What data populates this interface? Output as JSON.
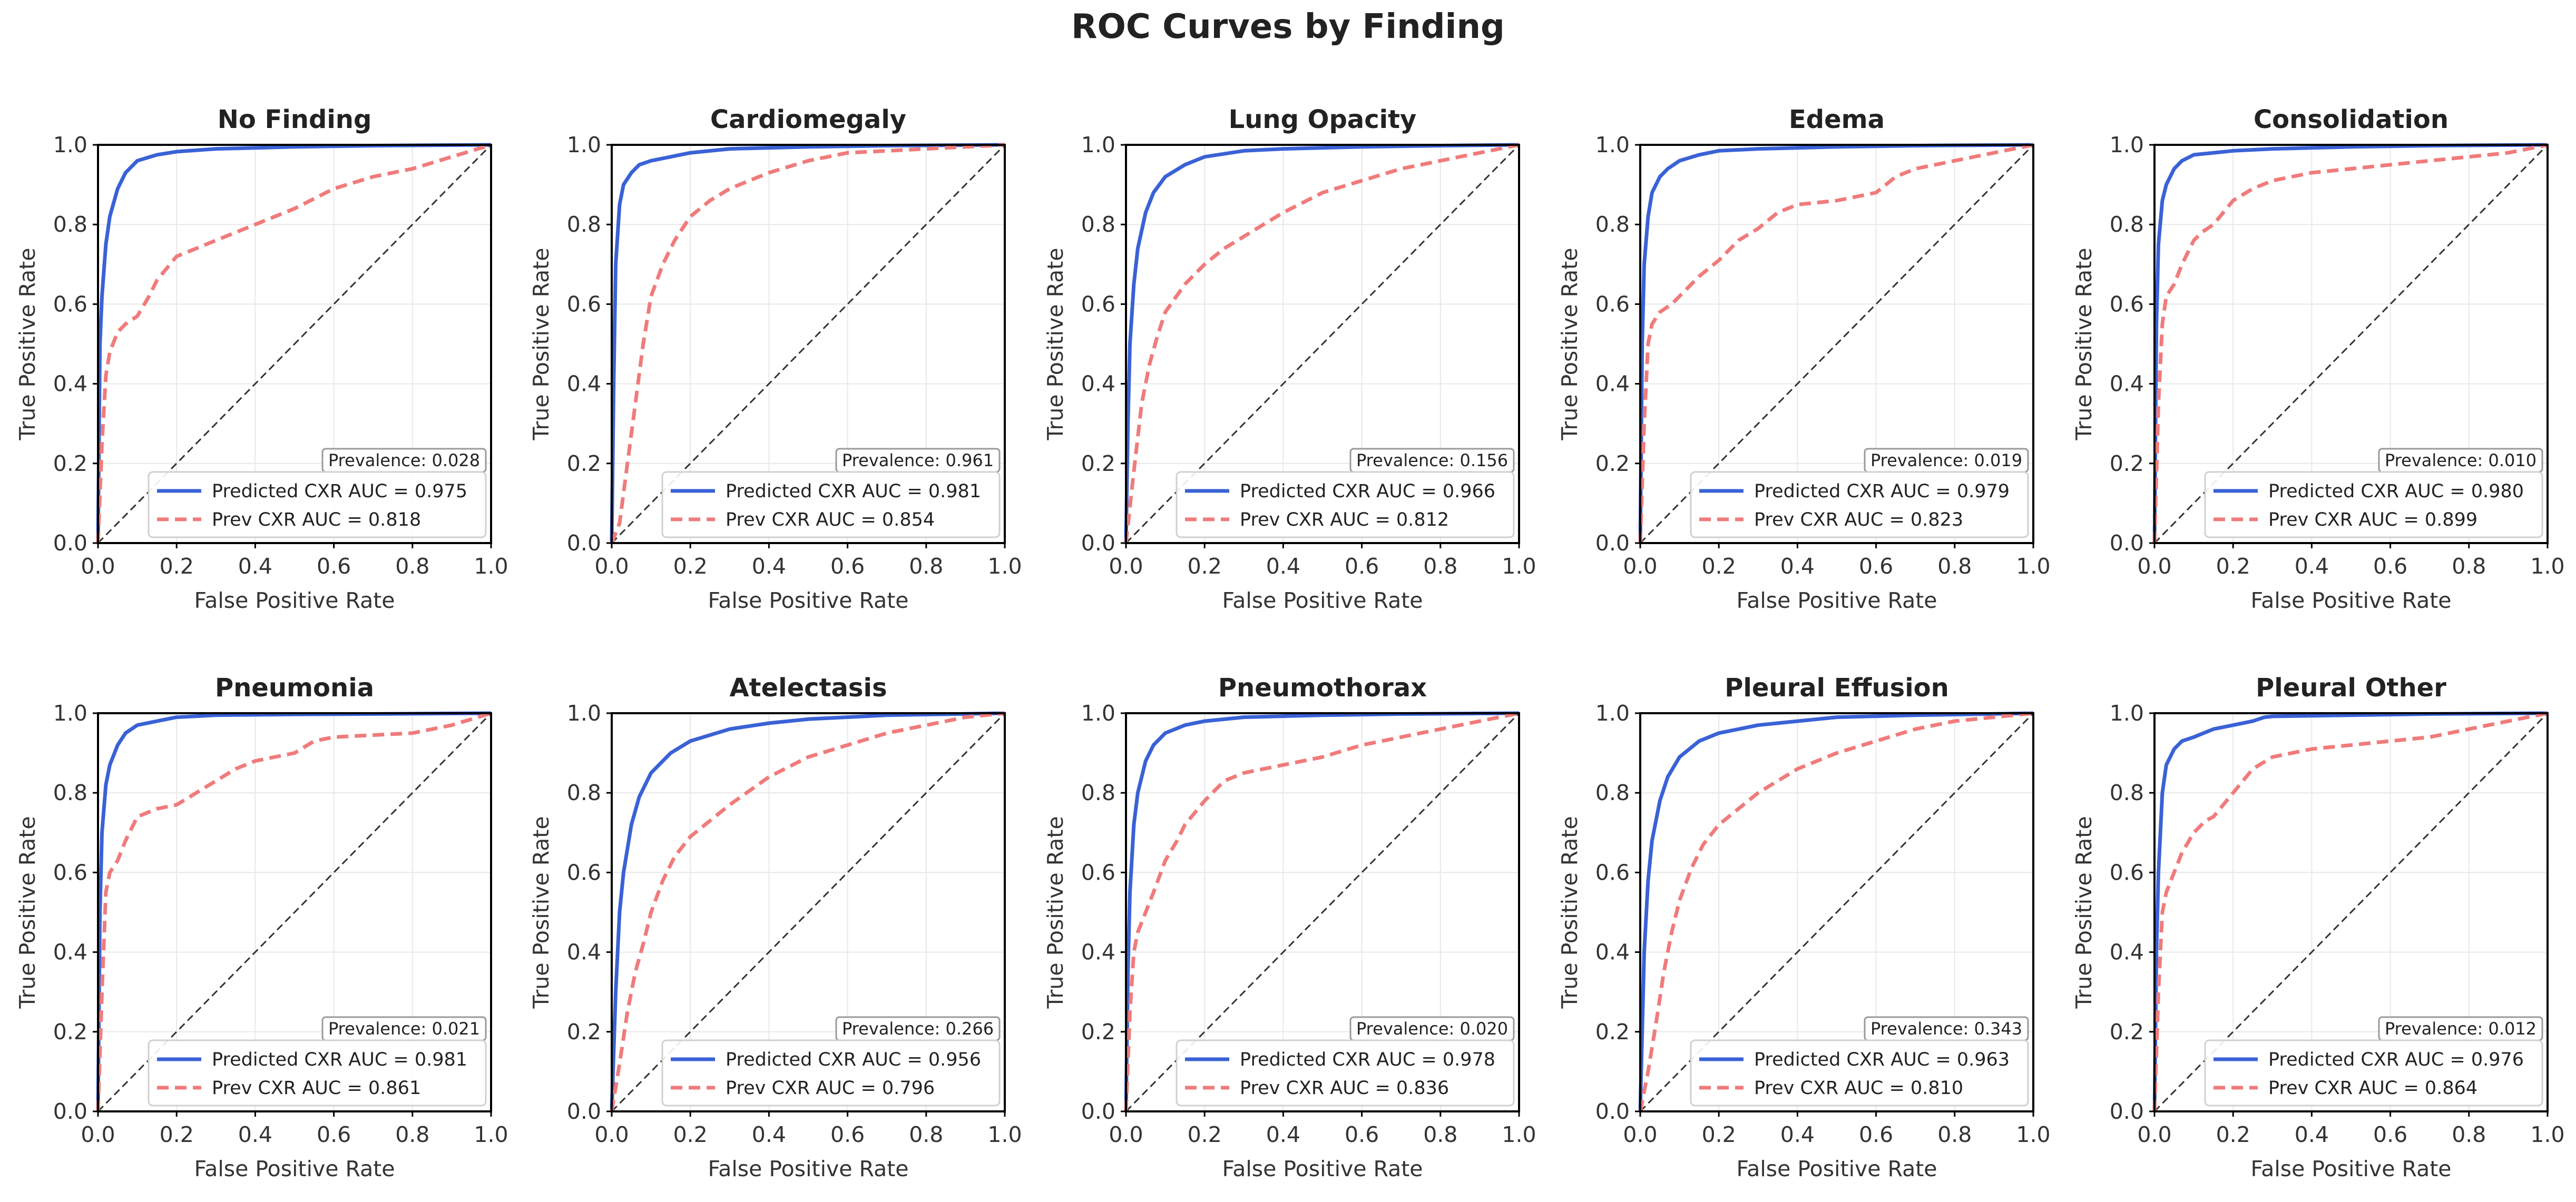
{
  "title": "ROC Curves by Finding",
  "colors": {
    "predicted": "#3a62d6",
    "previous": "#f07b7b",
    "diagonal": "#333333",
    "grid": "#e8e8e8"
  },
  "chart_data": {
    "type": "line",
    "xlabel": "False Positive Rate",
    "ylabel": "True Positive Rate",
    "xlim": [
      0.0,
      1.0
    ],
    "ylim": [
      0.0,
      1.0
    ],
    "ticks": [
      "0.0",
      "0.2",
      "0.4",
      "0.6",
      "0.8",
      "1.0"
    ],
    "grid": true,
    "legend_position": "lower-right",
    "panels": [
      {
        "title": "No Finding",
        "prevalence": "Prevalence: 0.028",
        "series": [
          {
            "name": "Predicted CXR AUC = 0.975",
            "x": [
              0,
              0.005,
              0.01,
              0.02,
              0.03,
              0.05,
              0.07,
              0.1,
              0.15,
              0.2,
              0.3,
              0.5,
              0.7,
              1.0
            ],
            "y": [
              0,
              0.5,
              0.62,
              0.75,
              0.82,
              0.89,
              0.93,
              0.96,
              0.975,
              0.983,
              0.99,
              0.995,
              0.998,
              1.0
            ]
          },
          {
            "name": "Prev CXR AUC = 0.818",
            "x": [
              0,
              0.01,
              0.02,
              0.03,
              0.05,
              0.07,
              0.1,
              0.13,
              0.15,
              0.2,
              0.25,
              0.3,
              0.35,
              0.4,
              0.5,
              0.6,
              0.7,
              0.8,
              0.9,
              1.0
            ],
            "y": [
              0,
              0.25,
              0.42,
              0.48,
              0.53,
              0.55,
              0.57,
              0.62,
              0.66,
              0.72,
              0.74,
              0.76,
              0.78,
              0.8,
              0.84,
              0.89,
              0.92,
              0.94,
              0.97,
              1.0
            ]
          }
        ]
      },
      {
        "title": "Cardiomegaly",
        "prevalence": "Prevalence: 0.961",
        "series": [
          {
            "name": "Predicted CXR AUC = 0.981",
            "x": [
              0,
              0.005,
              0.01,
              0.02,
              0.03,
              0.05,
              0.07,
              0.1,
              0.15,
              0.2,
              0.3,
              0.5,
              0.7,
              1.0
            ],
            "y": [
              0,
              0.4,
              0.7,
              0.85,
              0.9,
              0.93,
              0.95,
              0.96,
              0.97,
              0.98,
              0.99,
              0.995,
              0.998,
              1.0
            ]
          },
          {
            "name": "Prev CXR AUC = 0.854",
            "x": [
              0,
              0.02,
              0.04,
              0.06,
              0.08,
              0.1,
              0.13,
              0.16,
              0.2,
              0.25,
              0.3,
              0.4,
              0.5,
              0.6,
              0.8,
              1.0
            ],
            "y": [
              0,
              0.05,
              0.2,
              0.35,
              0.5,
              0.62,
              0.7,
              0.76,
              0.82,
              0.86,
              0.89,
              0.93,
              0.96,
              0.98,
              0.99,
              1.0
            ]
          }
        ]
      },
      {
        "title": "Lung Opacity",
        "prevalence": "Prevalence: 0.156",
        "series": [
          {
            "name": "Predicted CXR AUC = 0.966",
            "x": [
              0,
              0.005,
              0.01,
              0.02,
              0.03,
              0.05,
              0.07,
              0.1,
              0.15,
              0.2,
              0.3,
              0.4,
              0.6,
              0.8,
              1.0
            ],
            "y": [
              0,
              0.3,
              0.5,
              0.65,
              0.74,
              0.83,
              0.88,
              0.92,
              0.95,
              0.97,
              0.985,
              0.99,
              0.995,
              0.998,
              1.0
            ]
          },
          {
            "name": "Prev CXR AUC = 0.812",
            "x": [
              0,
              0.02,
              0.04,
              0.06,
              0.08,
              0.1,
              0.15,
              0.2,
              0.25,
              0.3,
              0.4,
              0.5,
              0.6,
              0.7,
              0.8,
              0.9,
              1.0
            ],
            "y": [
              0,
              0.18,
              0.35,
              0.45,
              0.52,
              0.58,
              0.65,
              0.7,
              0.74,
              0.77,
              0.83,
              0.88,
              0.91,
              0.94,
              0.96,
              0.98,
              1.0
            ]
          }
        ]
      },
      {
        "title": "Edema",
        "prevalence": "Prevalence: 0.019",
        "series": [
          {
            "name": "Predicted CXR AUC = 0.979",
            "x": [
              0,
              0.005,
              0.01,
              0.02,
              0.03,
              0.05,
              0.07,
              0.1,
              0.15,
              0.2,
              0.3,
              0.5,
              0.7,
              1.0
            ],
            "y": [
              0,
              0.5,
              0.7,
              0.82,
              0.88,
              0.92,
              0.94,
              0.96,
              0.975,
              0.985,
              0.99,
              0.995,
              0.998,
              1.0
            ]
          },
          {
            "name": "Prev CXR AUC = 0.823",
            "x": [
              0,
              0.01,
              0.02,
              0.03,
              0.05,
              0.08,
              0.1,
              0.15,
              0.2,
              0.25,
              0.3,
              0.35,
              0.4,
              0.5,
              0.55,
              0.6,
              0.65,
              0.7,
              0.8,
              0.9,
              1.0
            ],
            "y": [
              0,
              0.3,
              0.5,
              0.55,
              0.58,
              0.6,
              0.62,
              0.67,
              0.71,
              0.76,
              0.79,
              0.83,
              0.85,
              0.86,
              0.87,
              0.88,
              0.92,
              0.94,
              0.96,
              0.98,
              1.0
            ]
          }
        ]
      },
      {
        "title": "Consolidation",
        "prevalence": "Prevalence: 0.010",
        "series": [
          {
            "name": "Predicted CXR AUC = 0.980",
            "x": [
              0,
              0.005,
              0.01,
              0.02,
              0.03,
              0.05,
              0.07,
              0.1,
              0.15,
              0.2,
              0.3,
              0.5,
              0.7,
              1.0
            ],
            "y": [
              0,
              0.55,
              0.75,
              0.86,
              0.9,
              0.94,
              0.96,
              0.975,
              0.98,
              0.985,
              0.99,
              0.995,
              0.998,
              1.0
            ]
          },
          {
            "name": "Prev CXR AUC = 0.899",
            "x": [
              0,
              0.01,
              0.02,
              0.03,
              0.05,
              0.07,
              0.1,
              0.12,
              0.15,
              0.2,
              0.25,
              0.3,
              0.4,
              0.5,
              0.6,
              0.7,
              0.8,
              0.9,
              1.0
            ],
            "y": [
              0,
              0.35,
              0.55,
              0.62,
              0.65,
              0.7,
              0.76,
              0.78,
              0.8,
              0.86,
              0.89,
              0.91,
              0.93,
              0.94,
              0.95,
              0.96,
              0.97,
              0.98,
              1.0
            ]
          }
        ]
      },
      {
        "title": "Pneumonia",
        "prevalence": "Prevalence: 0.021",
        "series": [
          {
            "name": "Predicted CXR AUC = 0.981",
            "x": [
              0,
              0.005,
              0.01,
              0.02,
              0.03,
              0.05,
              0.07,
              0.1,
              0.15,
              0.2,
              0.3,
              0.5,
              0.7,
              1.0
            ],
            "y": [
              0,
              0.5,
              0.7,
              0.82,
              0.87,
              0.92,
              0.95,
              0.97,
              0.98,
              0.99,
              0.995,
              0.997,
              0.998,
              1.0
            ]
          },
          {
            "name": "Prev CXR AUC = 0.861",
            "x": [
              0,
              0.01,
              0.02,
              0.03,
              0.05,
              0.07,
              0.1,
              0.15,
              0.2,
              0.25,
              0.3,
              0.35,
              0.4,
              0.5,
              0.55,
              0.6,
              0.7,
              0.8,
              0.9,
              1.0
            ],
            "y": [
              0,
              0.3,
              0.55,
              0.6,
              0.63,
              0.68,
              0.74,
              0.76,
              0.77,
              0.8,
              0.83,
              0.86,
              0.88,
              0.9,
              0.93,
              0.94,
              0.945,
              0.95,
              0.97,
              1.0
            ]
          }
        ]
      },
      {
        "title": "Atelectasis",
        "prevalence": "Prevalence: 0.266",
        "series": [
          {
            "name": "Predicted CXR AUC = 0.956",
            "x": [
              0,
              0.005,
              0.01,
              0.02,
              0.03,
              0.05,
              0.07,
              0.1,
              0.15,
              0.2,
              0.3,
              0.4,
              0.5,
              0.7,
              1.0
            ],
            "y": [
              0,
              0.15,
              0.3,
              0.5,
              0.6,
              0.72,
              0.79,
              0.85,
              0.9,
              0.93,
              0.96,
              0.975,
              0.985,
              0.995,
              1.0
            ]
          },
          {
            "name": "Prev CXR AUC = 0.796",
            "x": [
              0,
              0.02,
              0.04,
              0.06,
              0.08,
              0.1,
              0.13,
              0.16,
              0.2,
              0.25,
              0.3,
              0.4,
              0.5,
              0.6,
              0.7,
              0.8,
              0.9,
              1.0
            ],
            "y": [
              0,
              0.12,
              0.25,
              0.35,
              0.42,
              0.5,
              0.58,
              0.64,
              0.69,
              0.73,
              0.77,
              0.84,
              0.89,
              0.92,
              0.95,
              0.97,
              0.99,
              1.0
            ]
          }
        ]
      },
      {
        "title": "Pneumothorax",
        "prevalence": "Prevalence: 0.020",
        "series": [
          {
            "name": "Predicted CXR AUC = 0.978",
            "x": [
              0,
              0.005,
              0.01,
              0.02,
              0.03,
              0.05,
              0.07,
              0.1,
              0.15,
              0.2,
              0.3,
              0.5,
              0.7,
              1.0
            ],
            "y": [
              0,
              0.35,
              0.55,
              0.72,
              0.8,
              0.88,
              0.92,
              0.95,
              0.97,
              0.98,
              0.99,
              0.995,
              0.998,
              1.0
            ]
          },
          {
            "name": "Prev CXR AUC = 0.836",
            "x": [
              0,
              0.01,
              0.02,
              0.03,
              0.05,
              0.07,
              0.1,
              0.13,
              0.15,
              0.2,
              0.25,
              0.3,
              0.4,
              0.5,
              0.6,
              0.7,
              0.8,
              0.9,
              1.0
            ],
            "y": [
              0,
              0.25,
              0.4,
              0.45,
              0.5,
              0.55,
              0.63,
              0.68,
              0.72,
              0.78,
              0.83,
              0.85,
              0.87,
              0.89,
              0.92,
              0.94,
              0.96,
              0.98,
              1.0
            ]
          }
        ]
      },
      {
        "title": "Pleural Effusion",
        "prevalence": "Prevalence: 0.343",
        "series": [
          {
            "name": "Predicted CXR AUC = 0.963",
            "x": [
              0,
              0.005,
              0.01,
              0.02,
              0.03,
              0.05,
              0.07,
              0.1,
              0.15,
              0.2,
              0.3,
              0.4,
              0.5,
              0.7,
              1.0
            ],
            "y": [
              0,
              0.2,
              0.4,
              0.58,
              0.68,
              0.78,
              0.84,
              0.89,
              0.93,
              0.95,
              0.97,
              0.98,
              0.99,
              0.995,
              1.0
            ]
          },
          {
            "name": "Prev CXR AUC = 0.810",
            "x": [
              0,
              0.02,
              0.04,
              0.06,
              0.08,
              0.1,
              0.13,
              0.16,
              0.2,
              0.25,
              0.3,
              0.4,
              0.5,
              0.6,
              0.7,
              0.8,
              0.9,
              1.0
            ],
            "y": [
              0,
              0.1,
              0.22,
              0.35,
              0.45,
              0.53,
              0.61,
              0.67,
              0.72,
              0.76,
              0.8,
              0.86,
              0.9,
              0.93,
              0.96,
              0.98,
              0.99,
              1.0
            ]
          }
        ]
      },
      {
        "title": "Pleural Other",
        "prevalence": "Prevalence: 0.012",
        "series": [
          {
            "name": "Predicted CXR AUC = 0.976",
            "x": [
              0,
              0.005,
              0.01,
              0.02,
              0.03,
              0.05,
              0.07,
              0.1,
              0.15,
              0.2,
              0.25,
              0.28,
              0.3,
              0.5,
              0.7,
              1.0
            ],
            "y": [
              0,
              0.4,
              0.6,
              0.8,
              0.87,
              0.91,
              0.93,
              0.94,
              0.96,
              0.97,
              0.98,
              0.99,
              0.992,
              0.995,
              0.998,
              1.0
            ]
          },
          {
            "name": "Prev CXR AUC = 0.864",
            "x": [
              0,
              0.01,
              0.02,
              0.03,
              0.05,
              0.07,
              0.1,
              0.13,
              0.15,
              0.2,
              0.25,
              0.3,
              0.35,
              0.4,
              0.5,
              0.6,
              0.7,
              0.8,
              0.9,
              1.0
            ],
            "y": [
              0,
              0.3,
              0.5,
              0.55,
              0.6,
              0.65,
              0.7,
              0.73,
              0.74,
              0.8,
              0.86,
              0.89,
              0.9,
              0.91,
              0.92,
              0.93,
              0.94,
              0.96,
              0.98,
              1.0
            ]
          }
        ]
      }
    ]
  }
}
